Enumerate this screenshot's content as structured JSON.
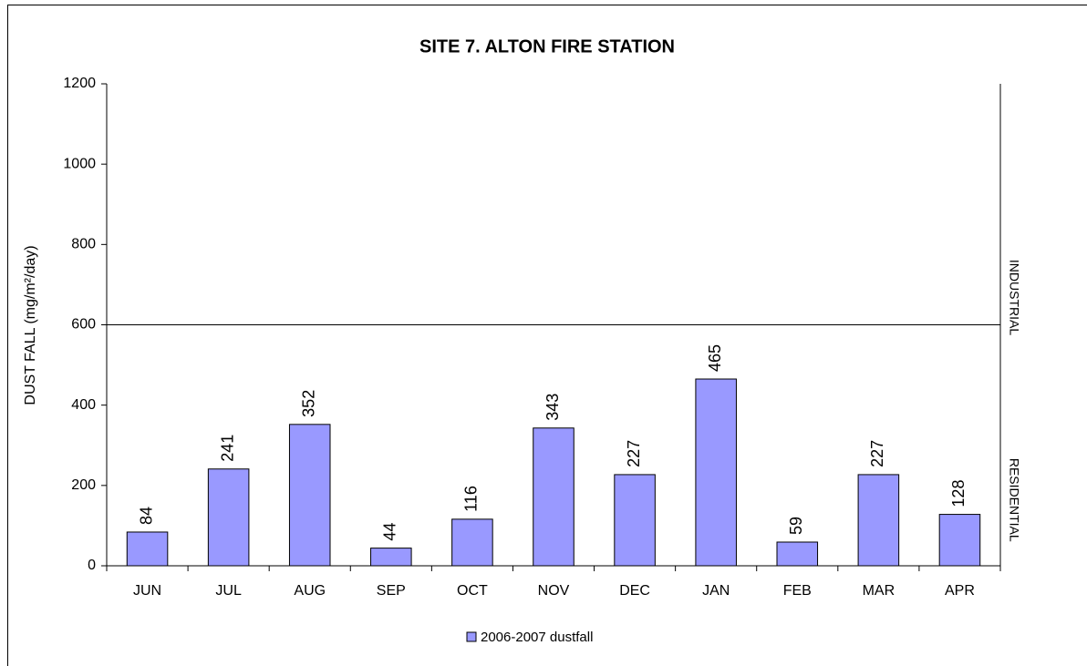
{
  "chart_data": {
    "type": "bar",
    "title": "SITE 7. ALTON FIRE STATION",
    "y_label": "DUST FALL  (mg/m²/day)",
    "categories": [
      "JUN",
      "JUL",
      "AUG",
      "SEP",
      "OCT",
      "NOV",
      "DEC",
      "JAN",
      "FEB",
      "MAR",
      "APR"
    ],
    "series": [
      {
        "name": "2006-2007 dustfall",
        "color": "#9999ff",
        "values": [
          84,
          241,
          352,
          44,
          116,
          343,
          227,
          465,
          59,
          227,
          128
        ]
      }
    ],
    "ylim": [
      0,
      1200
    ],
    "yticks": [
      0,
      200,
      400,
      600,
      800,
      1000,
      1200
    ],
    "threshold": 600,
    "annotations": [
      "INDUSTRIAL",
      "RESIDENTIAL"
    ],
    "legend": "bottom"
  }
}
